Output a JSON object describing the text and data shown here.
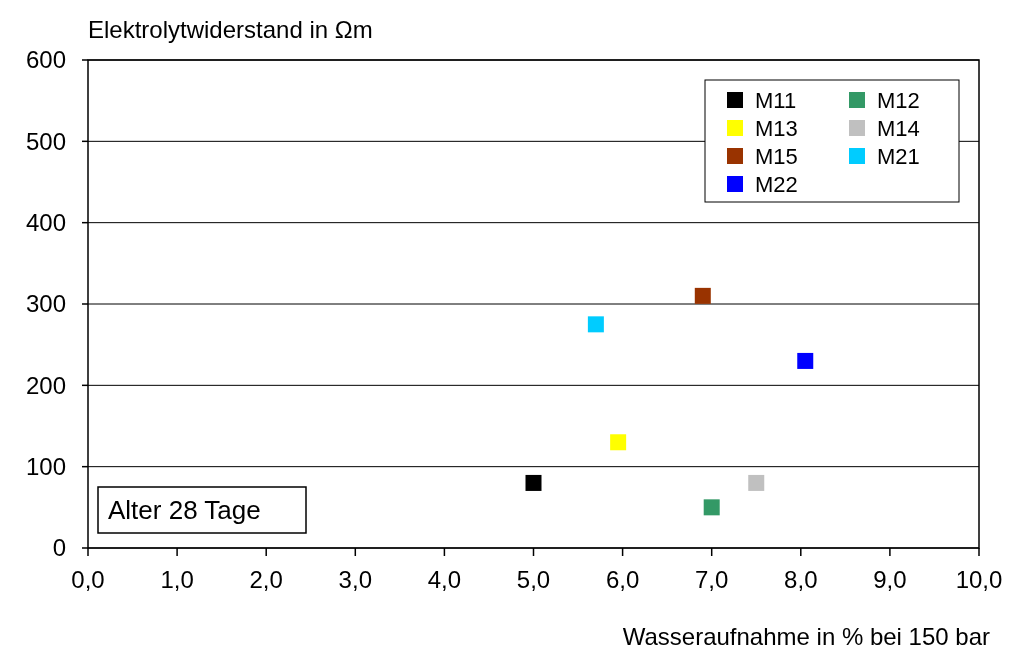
{
  "chart_data": {
    "type": "scatter",
    "ylabel": "Elektrolytwiderstand in Ωm",
    "xlabel": "Wasseraufnahme in % bei 150 bar",
    "annotations": [
      "Alter 28 Tage"
    ],
    "xlim": [
      0,
      10
    ],
    "ylim": [
      0,
      600
    ],
    "xticks": [
      {
        "value": 0,
        "label": "0,0"
      },
      {
        "value": 1,
        "label": "1,0"
      },
      {
        "value": 2,
        "label": "2,0"
      },
      {
        "value": 3,
        "label": "3,0"
      },
      {
        "value": 4,
        "label": "4,0"
      },
      {
        "value": 5,
        "label": "5,0"
      },
      {
        "value": 6,
        "label": "6,0"
      },
      {
        "value": 7,
        "label": "7,0"
      },
      {
        "value": 8,
        "label": "8,0"
      },
      {
        "value": 9,
        "label": "9,0"
      },
      {
        "value": 10,
        "label": "10,0"
      }
    ],
    "yticks": [
      0,
      100,
      200,
      300,
      400,
      500,
      600
    ],
    "grid": "y",
    "legend": "top right",
    "marker": "square",
    "series": [
      {
        "name": "M11",
        "color": "#000000",
        "x": [
          5.0
        ],
        "values": [
          80
        ]
      },
      {
        "name": "M12",
        "color": "#339966",
        "x": [
          7.0
        ],
        "values": [
          50
        ]
      },
      {
        "name": "M13",
        "color": "#ffff00",
        "x": [
          5.95
        ],
        "values": [
          130
        ]
      },
      {
        "name": "M14",
        "color": "#c0c0c0",
        "x": [
          7.5
        ],
        "values": [
          80
        ]
      },
      {
        "name": "M15",
        "color": "#993300",
        "x": [
          6.9
        ],
        "values": [
          310
        ]
      },
      {
        "name": "M21",
        "color": "#00ccff",
        "x": [
          5.7
        ],
        "values": [
          275
        ]
      },
      {
        "name": "M22",
        "color": "#0000ff",
        "x": [
          8.05
        ],
        "values": [
          230
        ]
      }
    ]
  }
}
